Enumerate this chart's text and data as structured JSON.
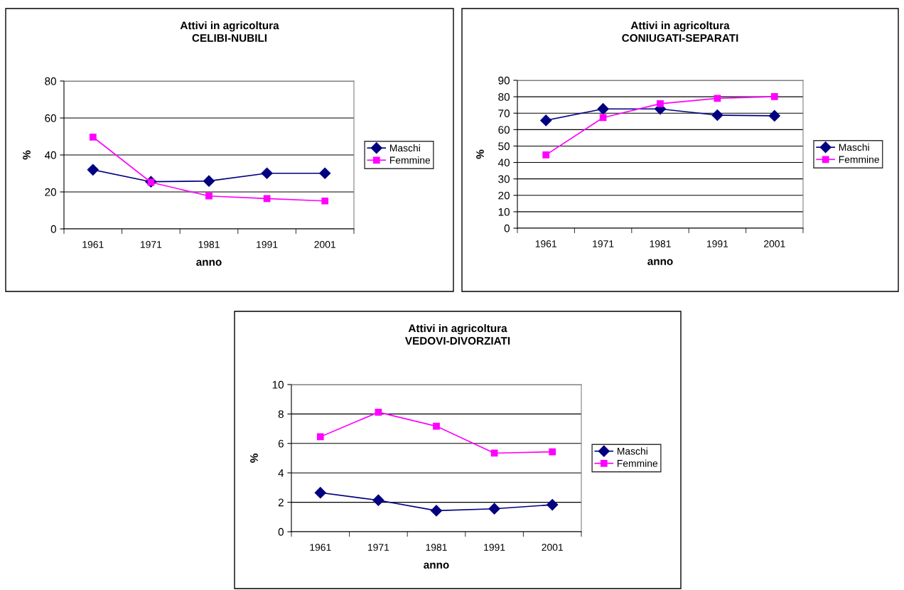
{
  "chart_data": [
    {
      "type": "line",
      "title": "Attivi in agricoltura\nCELIBI-NUBILI",
      "xlabel": "anno",
      "ylabel": "%",
      "categories": [
        "1961",
        "1971",
        "1981",
        "1991",
        "2001"
      ],
      "ylim": [
        0,
        80
      ],
      "yticks": [
        0,
        20,
        40,
        60,
        80
      ],
      "grid": "y",
      "legend": "right",
      "series": [
        {
          "name": "Maschi",
          "color": "#000080",
          "marker": "diamond",
          "values": [
            32.0,
            25.5,
            25.9,
            30.1,
            30.1
          ]
        },
        {
          "name": "Femmine",
          "color": "#ff00ff",
          "marker": "square",
          "values": [
            49.7,
            25.2,
            17.8,
            16.4,
            15.1
          ]
        }
      ]
    },
    {
      "type": "line",
      "title": "Attivi in agricoltura\nCONIUGATI-SEPARATI",
      "xlabel": "anno",
      "ylabel": "%",
      "categories": [
        "1961",
        "1971",
        "1981",
        "1991",
        "2001"
      ],
      "ylim": [
        0,
        90
      ],
      "yticks": [
        0,
        10,
        20,
        30,
        40,
        50,
        60,
        70,
        80,
        90
      ],
      "grid": "y",
      "legend": "right",
      "series": [
        {
          "name": "Maschi",
          "color": "#000080",
          "marker": "diamond",
          "values": [
            65.6,
            72.6,
            72.6,
            68.8,
            68.4
          ]
        },
        {
          "name": "Femmine",
          "color": "#ff00ff",
          "marker": "square",
          "values": [
            44.6,
            67.3,
            75.8,
            79.0,
            80.1
          ]
        }
      ]
    },
    {
      "type": "line",
      "title": "Attivi in agricoltura\nVEDOVI-DIVORZIATI",
      "xlabel": "anno",
      "ylabel": "%",
      "categories": [
        "1961",
        "1971",
        "1981",
        "1991",
        "2001"
      ],
      "ylim": [
        0,
        10
      ],
      "yticks": [
        0,
        2,
        4,
        6,
        8,
        10
      ],
      "grid": "y",
      "legend": "right",
      "series": [
        {
          "name": "Maschi",
          "color": "#000080",
          "marker": "diamond",
          "values": [
            2.65,
            2.14,
            1.43,
            1.56,
            1.83
          ]
        },
        {
          "name": "Femmine",
          "color": "#ff00ff",
          "marker": "square",
          "values": [
            6.45,
            8.12,
            7.17,
            5.34,
            5.43
          ]
        }
      ]
    }
  ]
}
